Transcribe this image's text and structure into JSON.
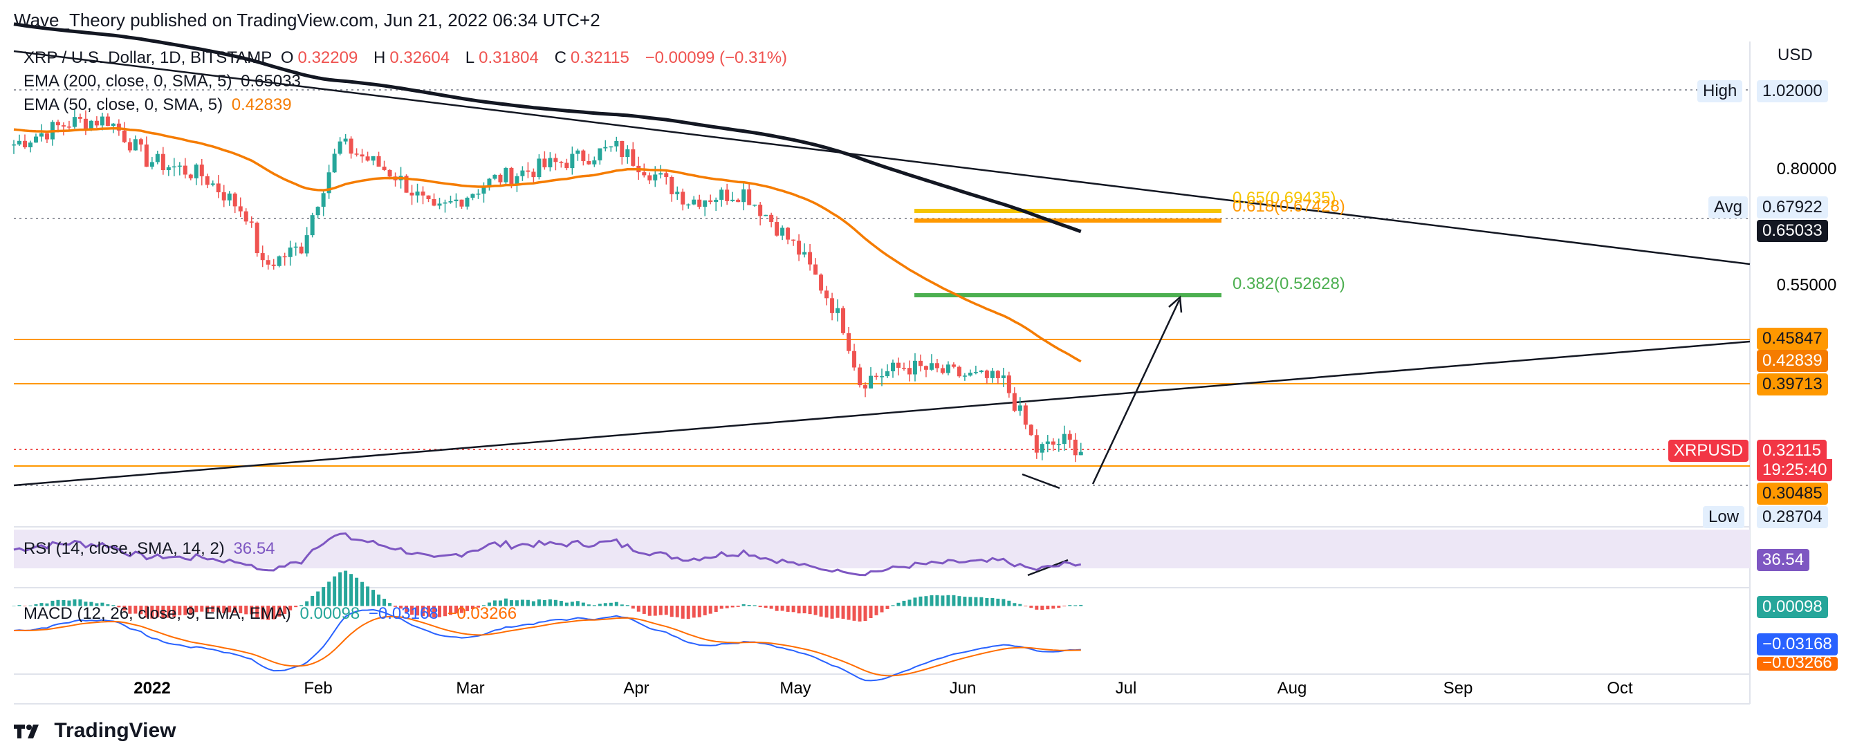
{
  "header": {
    "published": "Wave_Theory published on TradingView.com, Jun 21, 2022 06:34 UTC+2"
  },
  "legend": {
    "symbol": "XRP / U.S. Dollar, 1D, BITSTAMP",
    "o_label": "O",
    "o_value": "0.32209",
    "h_label": "H",
    "h_value": "0.32604",
    "l_label": "L",
    "l_value": "0.31804",
    "c_label": "C",
    "c_value": "0.32115",
    "change": "−0.00099 (−0.31%)",
    "ema200_label": "EMA (200, close, 0, SMA, 5)",
    "ema200_value": "0.65033",
    "ema50_label": "EMA (50, close, 0, SMA, 5)",
    "ema50_value": "0.42839",
    "ema50_color": "#f57c00"
  },
  "price_axis": {
    "unit": "USD",
    "ticks": [
      "1.02000",
      "0.80000",
      "0.67922",
      "0.55000",
      "0.32115"
    ],
    "high_label": "High",
    "high_value": "1.02000",
    "avg_label": "Avg",
    "avg_value": "0.67922",
    "low_label": "Low",
    "low_value": "0.28704",
    "tag_ema200": "0.65033",
    "tag_4585": "0.45847",
    "tag_4284": "0.42839",
    "tag_3971": "0.39713",
    "tag_symbol": "XRPUSD",
    "tag_last": "0.32115",
    "tag_countdown": "19:25:40",
    "tag_3049": "0.30485"
  },
  "fib": {
    "l618": "0.618(0.67428)",
    "l65": "0.65(0.69435)",
    "l382": "0.382(0.52628)"
  },
  "rsi": {
    "label": "RSI (14, close, SMA, 14, 2)",
    "value": "36.54",
    "tag": "36.54",
    "color": "#7e57c2"
  },
  "macd": {
    "label": "MACD (12, 26, close, 9, EMA, EMA)",
    "hist_value": "0.00098",
    "macd_value": "−0.03168",
    "signal_value": "−0.03266",
    "tag_hist": "0.00098",
    "tag_macd": "−0.03168",
    "tag_signal": "−0.03266"
  },
  "time_axis": [
    "2022",
    "Feb",
    "Mar",
    "Apr",
    "May",
    "Jun",
    "Jul",
    "Aug",
    "Sep",
    "Oct"
  ],
  "footer": {
    "brand": "TradingView"
  },
  "colors": {
    "up": "#26a69a",
    "down": "#ef5350",
    "ema200": "#131722",
    "ema50": "#f57c00",
    "orange_level": "#ff9800",
    "fib_yellow": "#f5c400",
    "fib_green": "#4caf50",
    "rsi": "#7e57c2",
    "macd": "#2962ff",
    "signal": "#ff6d00"
  },
  "chart_data": {
    "type": "candlestick",
    "title": "XRP / U.S. Dollar, 1D, BITSTAMP",
    "x_range": [
      "2021-12-10",
      "2022-10-20"
    ],
    "y_ticks": [
      0.55,
      0.8,
      1.02
    ],
    "key_levels": [
      0.45847,
      0.39713,
      0.30485
    ],
    "fib_levels": [
      {
        "ratio": 0.65,
        "value": 0.69435
      },
      {
        "ratio": 0.618,
        "value": 0.67428
      },
      {
        "ratio": 0.382,
        "value": 0.52628
      }
    ],
    "last_close": 0.32115,
    "ema200_last": 0.65033,
    "ema50_last": 0.42839,
    "series_close": [
      {
        "date": "2021-12-10",
        "close": 0.86
      },
      {
        "date": "2021-12-20",
        "close": 0.92
      },
      {
        "date": "2021-12-27",
        "close": 0.93
      },
      {
        "date": "2022-01-03",
        "close": 0.82
      },
      {
        "date": "2022-01-13",
        "close": 0.78
      },
      {
        "date": "2022-01-21",
        "close": 0.69
      },
      {
        "date": "2022-01-24",
        "close": 0.58
      },
      {
        "date": "2022-01-31",
        "close": 0.62
      },
      {
        "date": "2022-02-07",
        "close": 0.86
      },
      {
        "date": "2022-02-17",
        "close": 0.78
      },
      {
        "date": "2022-02-24",
        "close": 0.69
      },
      {
        "date": "2022-03-07",
        "close": 0.77
      },
      {
        "date": "2022-03-21",
        "close": 0.82
      },
      {
        "date": "2022-03-29",
        "close": 0.85
      },
      {
        "date": "2022-04-11",
        "close": 0.72
      },
      {
        "date": "2022-04-21",
        "close": 0.74
      },
      {
        "date": "2022-05-01",
        "close": 0.61
      },
      {
        "date": "2022-05-09",
        "close": 0.48
      },
      {
        "date": "2022-05-12",
        "close": 0.4
      },
      {
        "date": "2022-05-20",
        "close": 0.42
      },
      {
        "date": "2022-06-07",
        "close": 0.4
      },
      {
        "date": "2022-06-13",
        "close": 0.32
      },
      {
        "date": "2022-06-18",
        "close": 0.33
      },
      {
        "date": "2022-06-21",
        "close": 0.32115
      }
    ]
  }
}
